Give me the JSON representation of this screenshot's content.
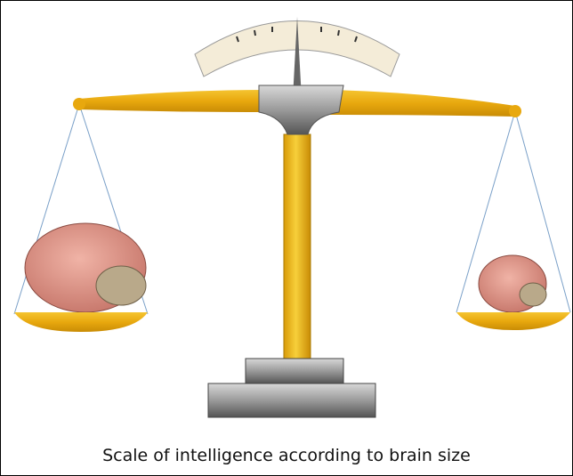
{
  "caption": "Scale of intelligence according to brain size"
}
